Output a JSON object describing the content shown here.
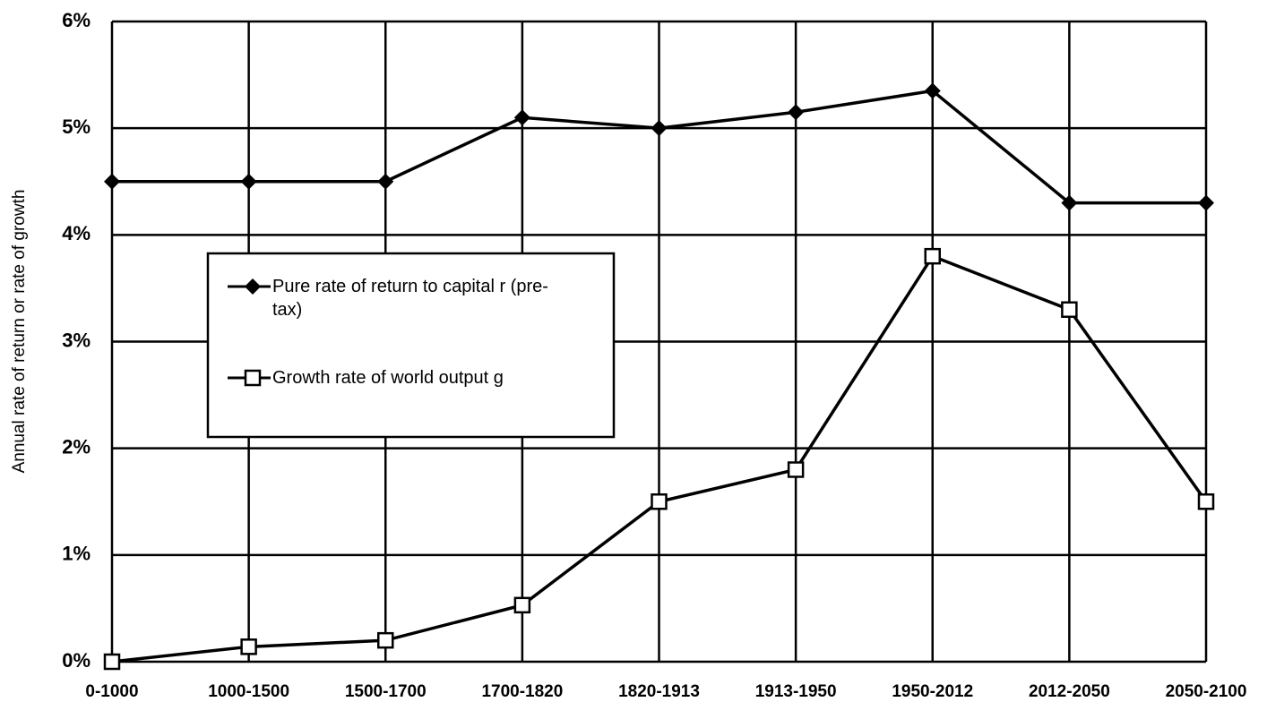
{
  "chart_data": {
    "type": "line",
    "y_label": "Annual rate of return or rate of growth",
    "categories": [
      "0-1000",
      "1000-1500",
      "1500-1700",
      "1700-1820",
      "1820-1913",
      "1913-1950",
      "1950-2012",
      "2012-2050",
      "2050-2100"
    ],
    "series": [
      {
        "name": "Pure rate of return to capital r (pre-tax)",
        "color": "#000000",
        "marker": "diamond",
        "values": [
          4.5,
          4.5,
          4.5,
          5.1,
          5.0,
          5.15,
          5.35,
          4.3,
          4.3
        ]
      },
      {
        "name": "Growth rate of world output g",
        "color": "#000000",
        "marker": "square",
        "values": [
          0,
          0.14,
          0.2,
          0.53,
          1.5,
          1.8,
          3.8,
          3.3,
          1.5
        ]
      }
    ],
    "ylim": [
      0,
      6
    ],
    "yticks": [
      {
        "value": 0,
        "label": "0%"
      },
      {
        "value": 1,
        "label": "1%"
      },
      {
        "value": 2,
        "label": "2%"
      },
      {
        "value": 3,
        "label": "3%"
      },
      {
        "value": 4,
        "label": "4%"
      },
      {
        "value": 5,
        "label": "5%"
      },
      {
        "value": 6,
        "label": "6%"
      }
    ],
    "grid": true,
    "legend": "left"
  }
}
